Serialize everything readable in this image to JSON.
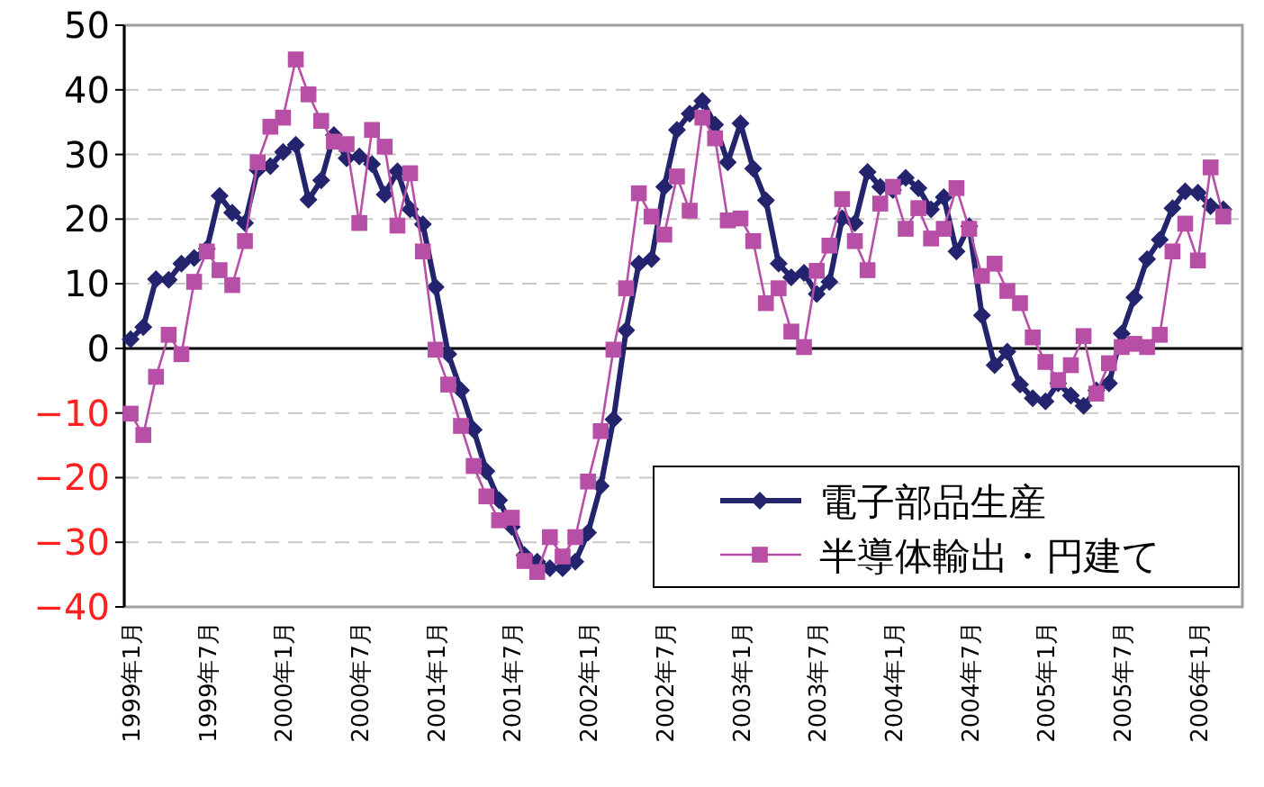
{
  "chart_data": {
    "type": "line",
    "categories": [
      "1999年1月",
      null,
      null,
      null,
      null,
      null,
      "1999年7月",
      null,
      null,
      null,
      null,
      null,
      "2000年1月",
      null,
      null,
      null,
      null,
      null,
      "2000年7月",
      null,
      null,
      null,
      null,
      null,
      "2001年1月",
      null,
      null,
      null,
      null,
      null,
      "2001年7月",
      null,
      null,
      null,
      null,
      null,
      "2002年1月",
      null,
      null,
      null,
      null,
      null,
      "2002年7月",
      null,
      null,
      null,
      null,
      null,
      "2003年1月",
      null,
      null,
      null,
      null,
      null,
      "2003年7月",
      null,
      null,
      null,
      null,
      null,
      "2004年1月",
      null,
      null,
      null,
      null,
      null,
      "2004年7月",
      null,
      null,
      null,
      null,
      null,
      "2005年1月",
      null,
      null,
      null,
      null,
      null,
      "2005年7月",
      null,
      null,
      null,
      null,
      null,
      "2006年1月",
      null,
      null,
      null
    ],
    "ylim": [
      -40,
      50
    ],
    "yticks": [
      -40,
      -30,
      -20,
      -10,
      0,
      10,
      20,
      30,
      40,
      50
    ],
    "grid": "y",
    "legend": "bottom right",
    "series": [
      {
        "name": "電子部品生産",
        "color": "#24246e",
        "marker": "diamond",
        "values": [
          1.4,
          3.3,
          10.7,
          10.6,
          13.1,
          14,
          15.4,
          23.6,
          21,
          19.4,
          27.6,
          28.2,
          30.4,
          31.5,
          23,
          26,
          33,
          29.4,
          29.7,
          28.5,
          23.8,
          27.4,
          21.5,
          19.2,
          9.5,
          -0.9,
          -6.5,
          -12.6,
          -19,
          -23.5,
          -27.6,
          -32,
          -33,
          -34,
          -34,
          -33,
          -28.5,
          -21.3,
          -11,
          2.8,
          13.1,
          13.8,
          25,
          33.8,
          36.3,
          38.3,
          34.6,
          28.8,
          34.8,
          27.8,
          22.9,
          13.1,
          11,
          11.7,
          8.4,
          10.3,
          20.1,
          19.4,
          27.3,
          25,
          24.5,
          26.4,
          24.8,
          21.5,
          23.4,
          15,
          18.9,
          5.1,
          -2.6,
          -0.5,
          -5.6,
          -7.7,
          -8.2,
          -5.4,
          -7.3,
          -8.9,
          -6.5,
          -5.4,
          2.3,
          7.9,
          13.8,
          16.8,
          21.7,
          24.3,
          24.1,
          22,
          21.5,
          null
        ]
      },
      {
        "name": "半導体輸出・円建て",
        "color": "#b84fa6",
        "marker": "square",
        "values": [
          -10.1,
          -13.4,
          -4.4,
          2.1,
          -0.9,
          10.3,
          15,
          12.1,
          9.8,
          16.6,
          28.8,
          34.3,
          35.7,
          44.7,
          39.3,
          35.2,
          32,
          31.6,
          19.4,
          33.8,
          31.2,
          19,
          27.1,
          15,
          -0.2,
          -5.6,
          -12,
          -18.2,
          -22.9,
          -26.6,
          -26.2,
          -32.9,
          -34.6,
          -29.2,
          -32.2,
          -29.2,
          -20.6,
          -12.8,
          -0.2,
          9.3,
          24,
          20.4,
          17.6,
          26.6,
          21.3,
          35.7,
          32.5,
          19.8,
          20.1,
          16.6,
          7,
          9.3,
          2.6,
          0.2,
          12,
          15.9,
          23.1,
          16.6,
          12.1,
          22.4,
          25,
          18.5,
          21.7,
          17,
          18.5,
          24.8,
          18.5,
          11.2,
          13.1,
          8.9,
          7,
          1.7,
          -2.1,
          -4.9,
          -2.6,
          1.9,
          -7,
          -2.3,
          0.2,
          0.7,
          0.2,
          2.1,
          15,
          19.3,
          13.6,
          28,
          20.4,
          null
        ]
      }
    ]
  }
}
